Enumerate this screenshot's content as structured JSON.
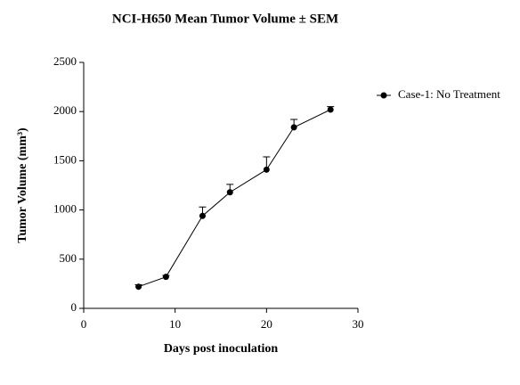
{
  "chart_data": {
    "type": "line",
    "title": "NCI-H650 Mean Tumor Volume ± SEM",
    "x_label": "Days post inoculation",
    "y_label": "Tumor Volume (mm³)",
    "x": [
      6,
      9,
      13,
      16,
      20,
      23,
      27
    ],
    "series": [
      {
        "name": "Case-1: No Treatment",
        "color": "#000000",
        "values": [
          220,
          320,
          940,
          1180,
          1410,
          1840,
          2020
        ],
        "errors": [
          20,
          15,
          90,
          80,
          130,
          80,
          30
        ]
      }
    ],
    "xlim": [
      0,
      30
    ],
    "xticks": [
      0,
      10,
      20,
      30
    ],
    "ylim": [
      0,
      2500
    ],
    "yticks": [
      0,
      500,
      1000,
      1500,
      2000,
      2500
    ],
    "grid": false,
    "legend": "right"
  }
}
